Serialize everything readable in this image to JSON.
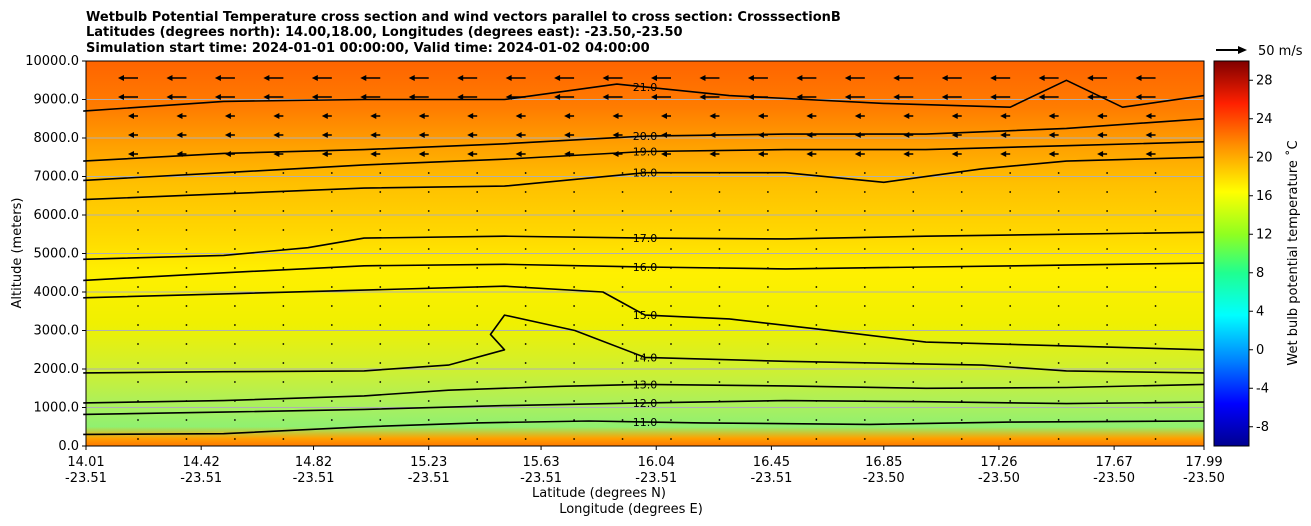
{
  "chart_data": {
    "type": "heatmap",
    "title_lines": [
      "Wetbulb Potential Temperature cross section and wind vectors parallel to cross section: CrosssectionB",
      "Latitudes (degrees north): 14.00,18.00, Longitudes (degrees east): -23.50,-23.50",
      "Simulation start time: 2024-01-01 00:00:00, Valid time: 2024-01-02 04:00:00"
    ],
    "xlabel_lat": "Latitude (degrees N)",
    "xlabel_lon": "Longitude (degrees E)",
    "ylabel": "Altitude (meters)",
    "ylim": [
      0,
      10000
    ],
    "xlim": [
      14.01,
      17.99
    ],
    "x_ticks": [
      {
        "lat": "14.01",
        "lon": "-23.51",
        "v": 14.01
      },
      {
        "lat": "14.42",
        "lon": "-23.51",
        "v": 14.42
      },
      {
        "lat": "14.82",
        "lon": "-23.51",
        "v": 14.82
      },
      {
        "lat": "15.23",
        "lon": "-23.51",
        "v": 15.23
      },
      {
        "lat": "15.63",
        "lon": "-23.51",
        "v": 15.63
      },
      {
        "lat": "16.04",
        "lon": "-23.51",
        "v": 16.04
      },
      {
        "lat": "16.45",
        "lon": "-23.51",
        "v": 16.45
      },
      {
        "lat": "16.85",
        "lon": "-23.50",
        "v": 16.85
      },
      {
        "lat": "17.26",
        "lon": "-23.50",
        "v": 17.26
      },
      {
        "lat": "17.67",
        "lon": "-23.50",
        "v": 17.67
      },
      {
        "lat": "17.99",
        "lon": "-23.50",
        "v": 17.99
      }
    ],
    "y_ticks": [
      "0.0",
      "1000.0",
      "2000.0",
      "3000.0",
      "4000.0",
      "5000.0",
      "6000.0",
      "7000.0",
      "8000.0",
      "9000.0",
      "10000.0"
    ],
    "y_tick_values": [
      0,
      1000,
      2000,
      3000,
      4000,
      5000,
      6000,
      7000,
      8000,
      9000,
      10000
    ],
    "grid": "horizontal",
    "colorbar": {
      "label": "Wet bulb potential temperature ˚C",
      "min": -10,
      "max": 30,
      "ticks": [
        "-8",
        "-4",
        "0",
        "4",
        "8",
        "12",
        "16",
        "20",
        "24",
        "28"
      ],
      "tick_values": [
        -8,
        -4,
        0,
        4,
        8,
        12,
        16,
        20,
        24,
        28
      ]
    },
    "quiver_key": "50 m/s",
    "contours": [
      {
        "level": 11.0,
        "label": "11.0",
        "points": [
          [
            14.0,
            300
          ],
          [
            14.5,
            320
          ],
          [
            15.0,
            500
          ],
          [
            15.4,
            600
          ],
          [
            15.8,
            650
          ],
          [
            16.2,
            600
          ],
          [
            16.8,
            560
          ],
          [
            17.3,
            620
          ],
          [
            17.99,
            650
          ]
        ]
      },
      {
        "level": 12.0,
        "label": "12.0",
        "points": [
          [
            14.0,
            820
          ],
          [
            14.5,
            880
          ],
          [
            15.0,
            950
          ],
          [
            15.5,
            1050
          ],
          [
            16.0,
            1120
          ],
          [
            16.5,
            1180
          ],
          [
            17.0,
            1150
          ],
          [
            17.5,
            1100
          ],
          [
            17.99,
            1140
          ]
        ]
      },
      {
        "level": 13.0,
        "label": "13.0",
        "points": [
          [
            14.0,
            1120
          ],
          [
            14.5,
            1180
          ],
          [
            15.0,
            1300
          ],
          [
            15.3,
            1450
          ],
          [
            15.7,
            1550
          ],
          [
            16.0,
            1600
          ],
          [
            16.5,
            1560
          ],
          [
            17.0,
            1500
          ],
          [
            17.5,
            1520
          ],
          [
            17.99,
            1600
          ]
        ]
      },
      {
        "level": 14.0,
        "label": "14.0",
        "points": [
          [
            14.0,
            1900
          ],
          [
            14.5,
            1930
          ],
          [
            15.0,
            1950
          ],
          [
            15.3,
            2100
          ],
          [
            15.5,
            2500
          ],
          [
            15.45,
            2900
          ],
          [
            15.5,
            3400
          ],
          [
            15.75,
            3000
          ],
          [
            16.0,
            2300
          ],
          [
            16.5,
            2200
          ],
          [
            16.85,
            2150
          ],
          [
            17.2,
            2100
          ],
          [
            17.5,
            1950
          ],
          [
            17.99,
            1900
          ]
        ]
      },
      {
        "level": 15.0,
        "label": "15.0",
        "points": [
          [
            14.0,
            3850
          ],
          [
            14.5,
            3950
          ],
          [
            15.0,
            4050
          ],
          [
            15.5,
            4150
          ],
          [
            15.85,
            4000
          ],
          [
            16.0,
            3400
          ],
          [
            16.3,
            3300
          ],
          [
            16.6,
            3050
          ],
          [
            17.0,
            2700
          ],
          [
            17.5,
            2600
          ],
          [
            17.99,
            2500
          ]
        ]
      },
      {
        "level": 16.0,
        "label": "16.0",
        "points": [
          [
            14.0,
            4300
          ],
          [
            14.5,
            4500
          ],
          [
            15.0,
            4680
          ],
          [
            15.5,
            4720
          ],
          [
            16.0,
            4650
          ],
          [
            16.5,
            4600
          ],
          [
            17.0,
            4650
          ],
          [
            17.5,
            4700
          ],
          [
            17.99,
            4750
          ]
        ]
      },
      {
        "level": 17.0,
        "label": "17.0",
        "points": [
          [
            14.0,
            4850
          ],
          [
            14.5,
            4950
          ],
          [
            14.8,
            5150
          ],
          [
            15.0,
            5400
          ],
          [
            15.5,
            5450
          ],
          [
            16.0,
            5400
          ],
          [
            16.5,
            5380
          ],
          [
            17.0,
            5450
          ],
          [
            17.5,
            5500
          ],
          [
            17.99,
            5550
          ]
        ]
      },
      {
        "level": 18.0,
        "label": "18.0",
        "points": [
          [
            14.0,
            6400
          ],
          [
            14.5,
            6550
          ],
          [
            15.0,
            6700
          ],
          [
            15.5,
            6750
          ],
          [
            16.0,
            7100
          ],
          [
            16.5,
            7100
          ],
          [
            16.85,
            6850
          ],
          [
            17.2,
            7200
          ],
          [
            17.5,
            7400
          ],
          [
            17.99,
            7500
          ]
        ]
      },
      {
        "level": 19.0,
        "label": "19.0",
        "points": [
          [
            14.0,
            6900
          ],
          [
            14.5,
            7100
          ],
          [
            15.0,
            7300
          ],
          [
            15.5,
            7450
          ],
          [
            16.0,
            7650
          ],
          [
            16.5,
            7700
          ],
          [
            17.0,
            7700
          ],
          [
            17.5,
            7800
          ],
          [
            17.99,
            7900
          ]
        ]
      },
      {
        "level": 20.0,
        "label": "20.0",
        "points": [
          [
            14.0,
            7400
          ],
          [
            14.5,
            7600
          ],
          [
            15.0,
            7700
          ],
          [
            15.5,
            7850
          ],
          [
            16.0,
            8050
          ],
          [
            16.5,
            8100
          ],
          [
            17.0,
            8100
          ],
          [
            17.5,
            8250
          ],
          [
            17.99,
            8500
          ]
        ]
      },
      {
        "level": 21.0,
        "label": "21.0",
        "points": [
          [
            14.0,
            8700
          ],
          [
            14.5,
            8950
          ],
          [
            15.0,
            9000
          ],
          [
            15.5,
            9000
          ],
          [
            15.9,
            9400
          ],
          [
            16.3,
            9100
          ],
          [
            16.85,
            8900
          ],
          [
            17.3,
            8800
          ],
          [
            17.5,
            9500
          ],
          [
            17.7,
            8800
          ],
          [
            17.99,
            9100
          ]
        ]
      }
    ]
  }
}
